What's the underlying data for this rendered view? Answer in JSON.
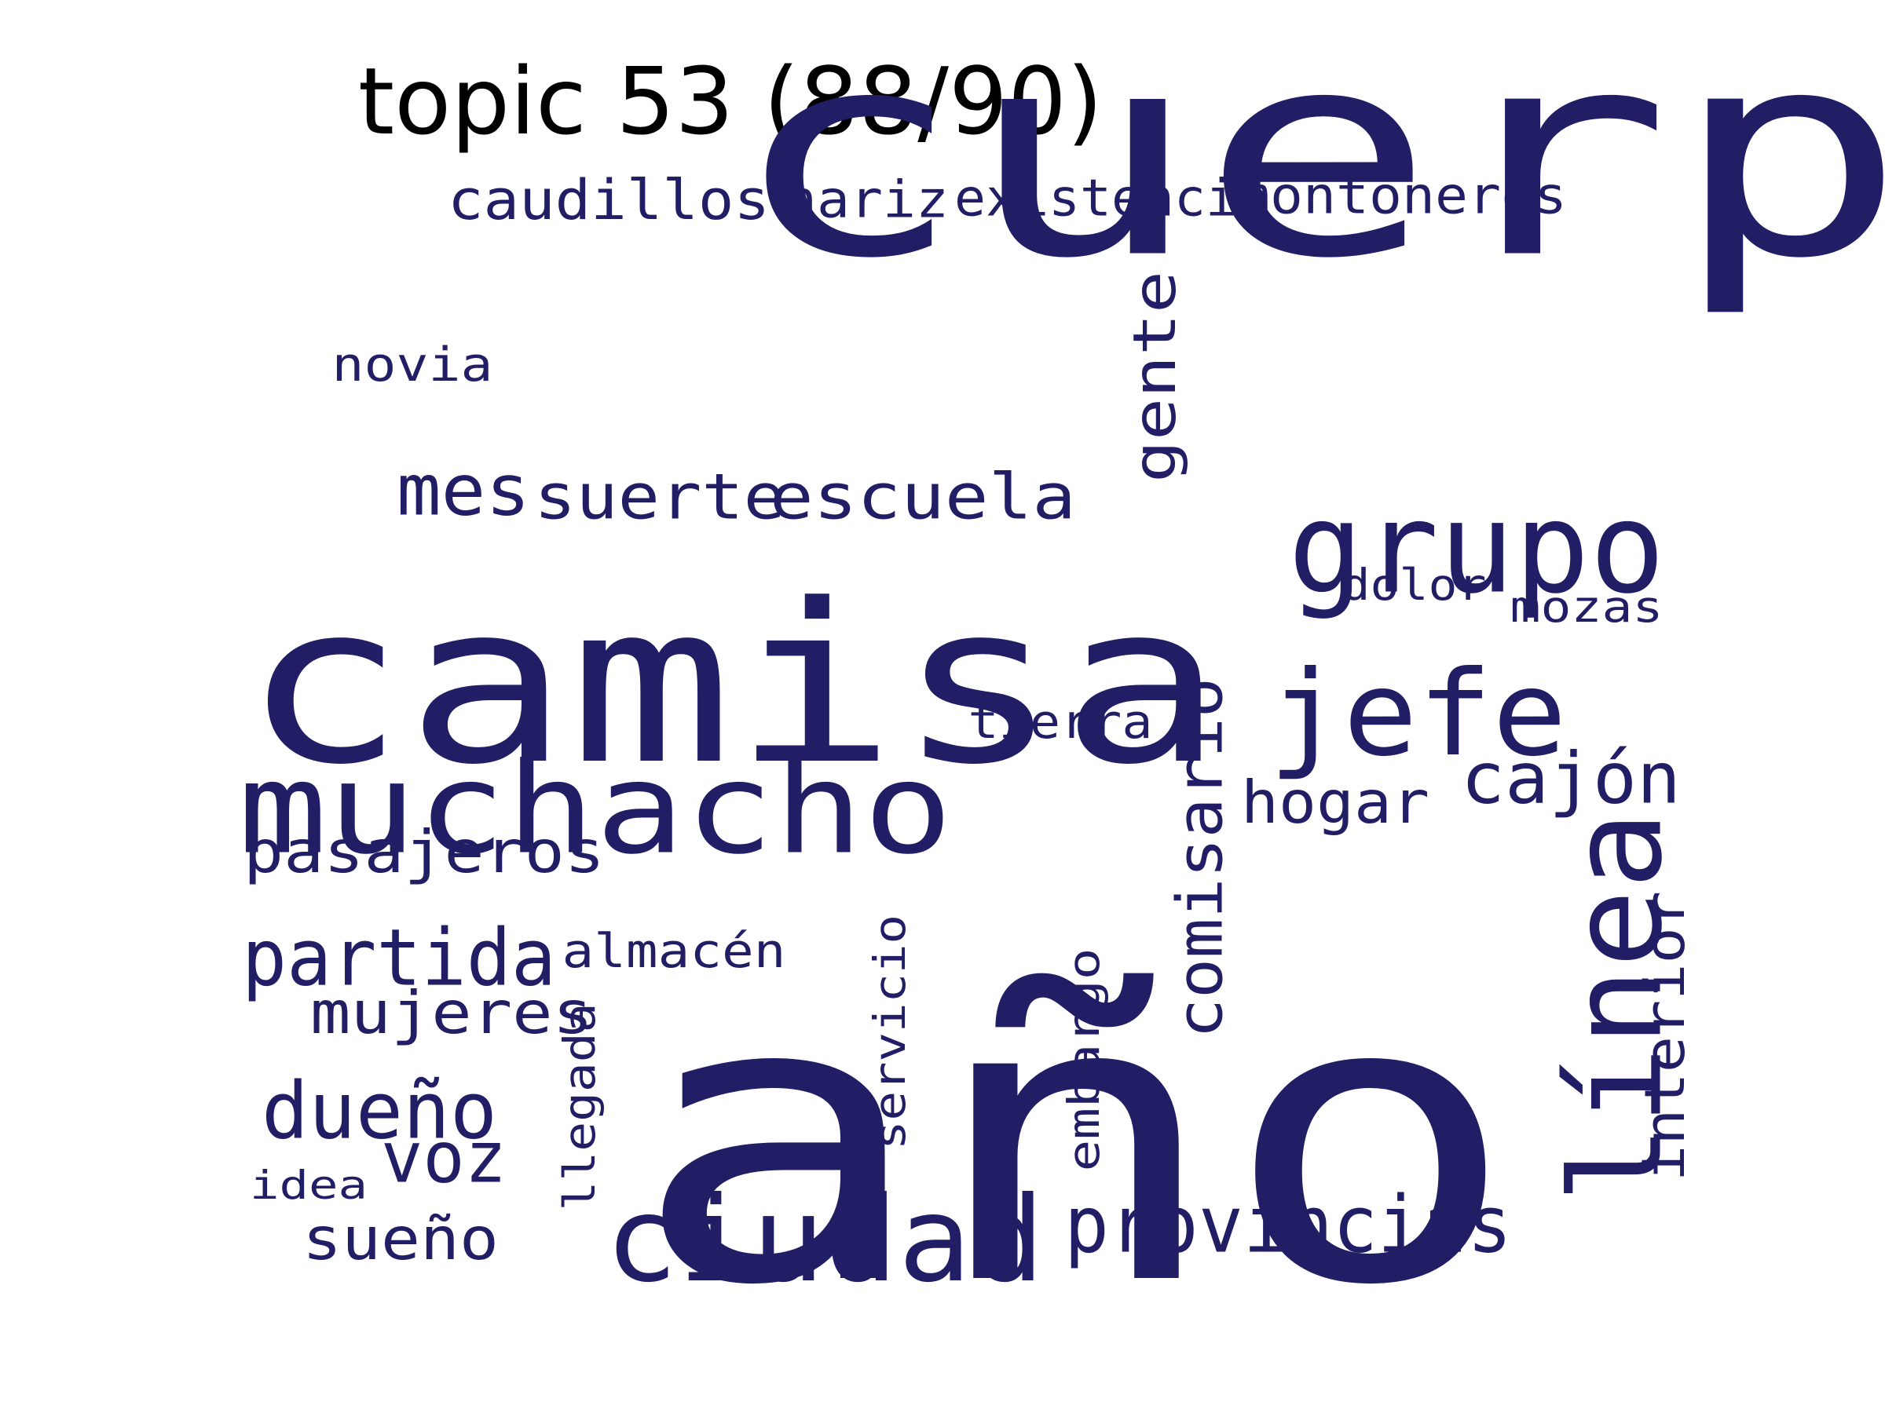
{
  "title": "topic 53 (88/90)",
  "word_color": "#221e66",
  "words": [
    {
      "id": "cuerpo",
      "text": "cuerpo"
    },
    {
      "id": "año",
      "text": "año"
    },
    {
      "id": "camisa",
      "text": "camisa"
    },
    {
      "id": "muchacho",
      "text": "muchacho"
    },
    {
      "id": "grupo",
      "text": "grupo"
    },
    {
      "id": "jefe",
      "text": "jefe"
    },
    {
      "id": "línea",
      "text": "línea"
    },
    {
      "id": "ciudad",
      "text": "ciudad"
    },
    {
      "id": "provincias",
      "text": "provincias"
    },
    {
      "id": "partida",
      "text": "partida"
    },
    {
      "id": "comisario",
      "text": "comisario"
    },
    {
      "id": "dueño",
      "text": "dueño"
    },
    {
      "id": "mes",
      "text": "mes"
    },
    {
      "id": "suerte",
      "text": "suerte"
    },
    {
      "id": "escuela",
      "text": "escuela"
    },
    {
      "id": "gente",
      "text": "gente"
    },
    {
      "id": "pasajeros",
      "text": "pasajeros"
    },
    {
      "id": "cajón",
      "text": "cajón"
    },
    {
      "id": "hogar",
      "text": "hogar"
    },
    {
      "id": "mujeres",
      "text": "mujeres"
    },
    {
      "id": "voz",
      "text": "voz"
    },
    {
      "id": "interior",
      "text": "interior"
    },
    {
      "id": "sueño",
      "text": "sueño"
    },
    {
      "id": "caudillos",
      "text": "caudillos"
    },
    {
      "id": "montoneros",
      "text": "montoneros"
    },
    {
      "id": "existencia",
      "text": "existencia"
    },
    {
      "id": "nariz",
      "text": "nariz"
    },
    {
      "id": "almacén",
      "text": "almacén"
    },
    {
      "id": "novia",
      "text": "novia"
    },
    {
      "id": "tierra",
      "text": "tierra"
    },
    {
      "id": "servicio",
      "text": "servicio"
    },
    {
      "id": "embargo",
      "text": "embargo"
    },
    {
      "id": "llegada",
      "text": "llegada"
    },
    {
      "id": "dolor",
      "text": "dolor"
    },
    {
      "id": "mozas",
      "text": "mozas"
    },
    {
      "id": "idea",
      "text": "idea"
    }
  ]
}
